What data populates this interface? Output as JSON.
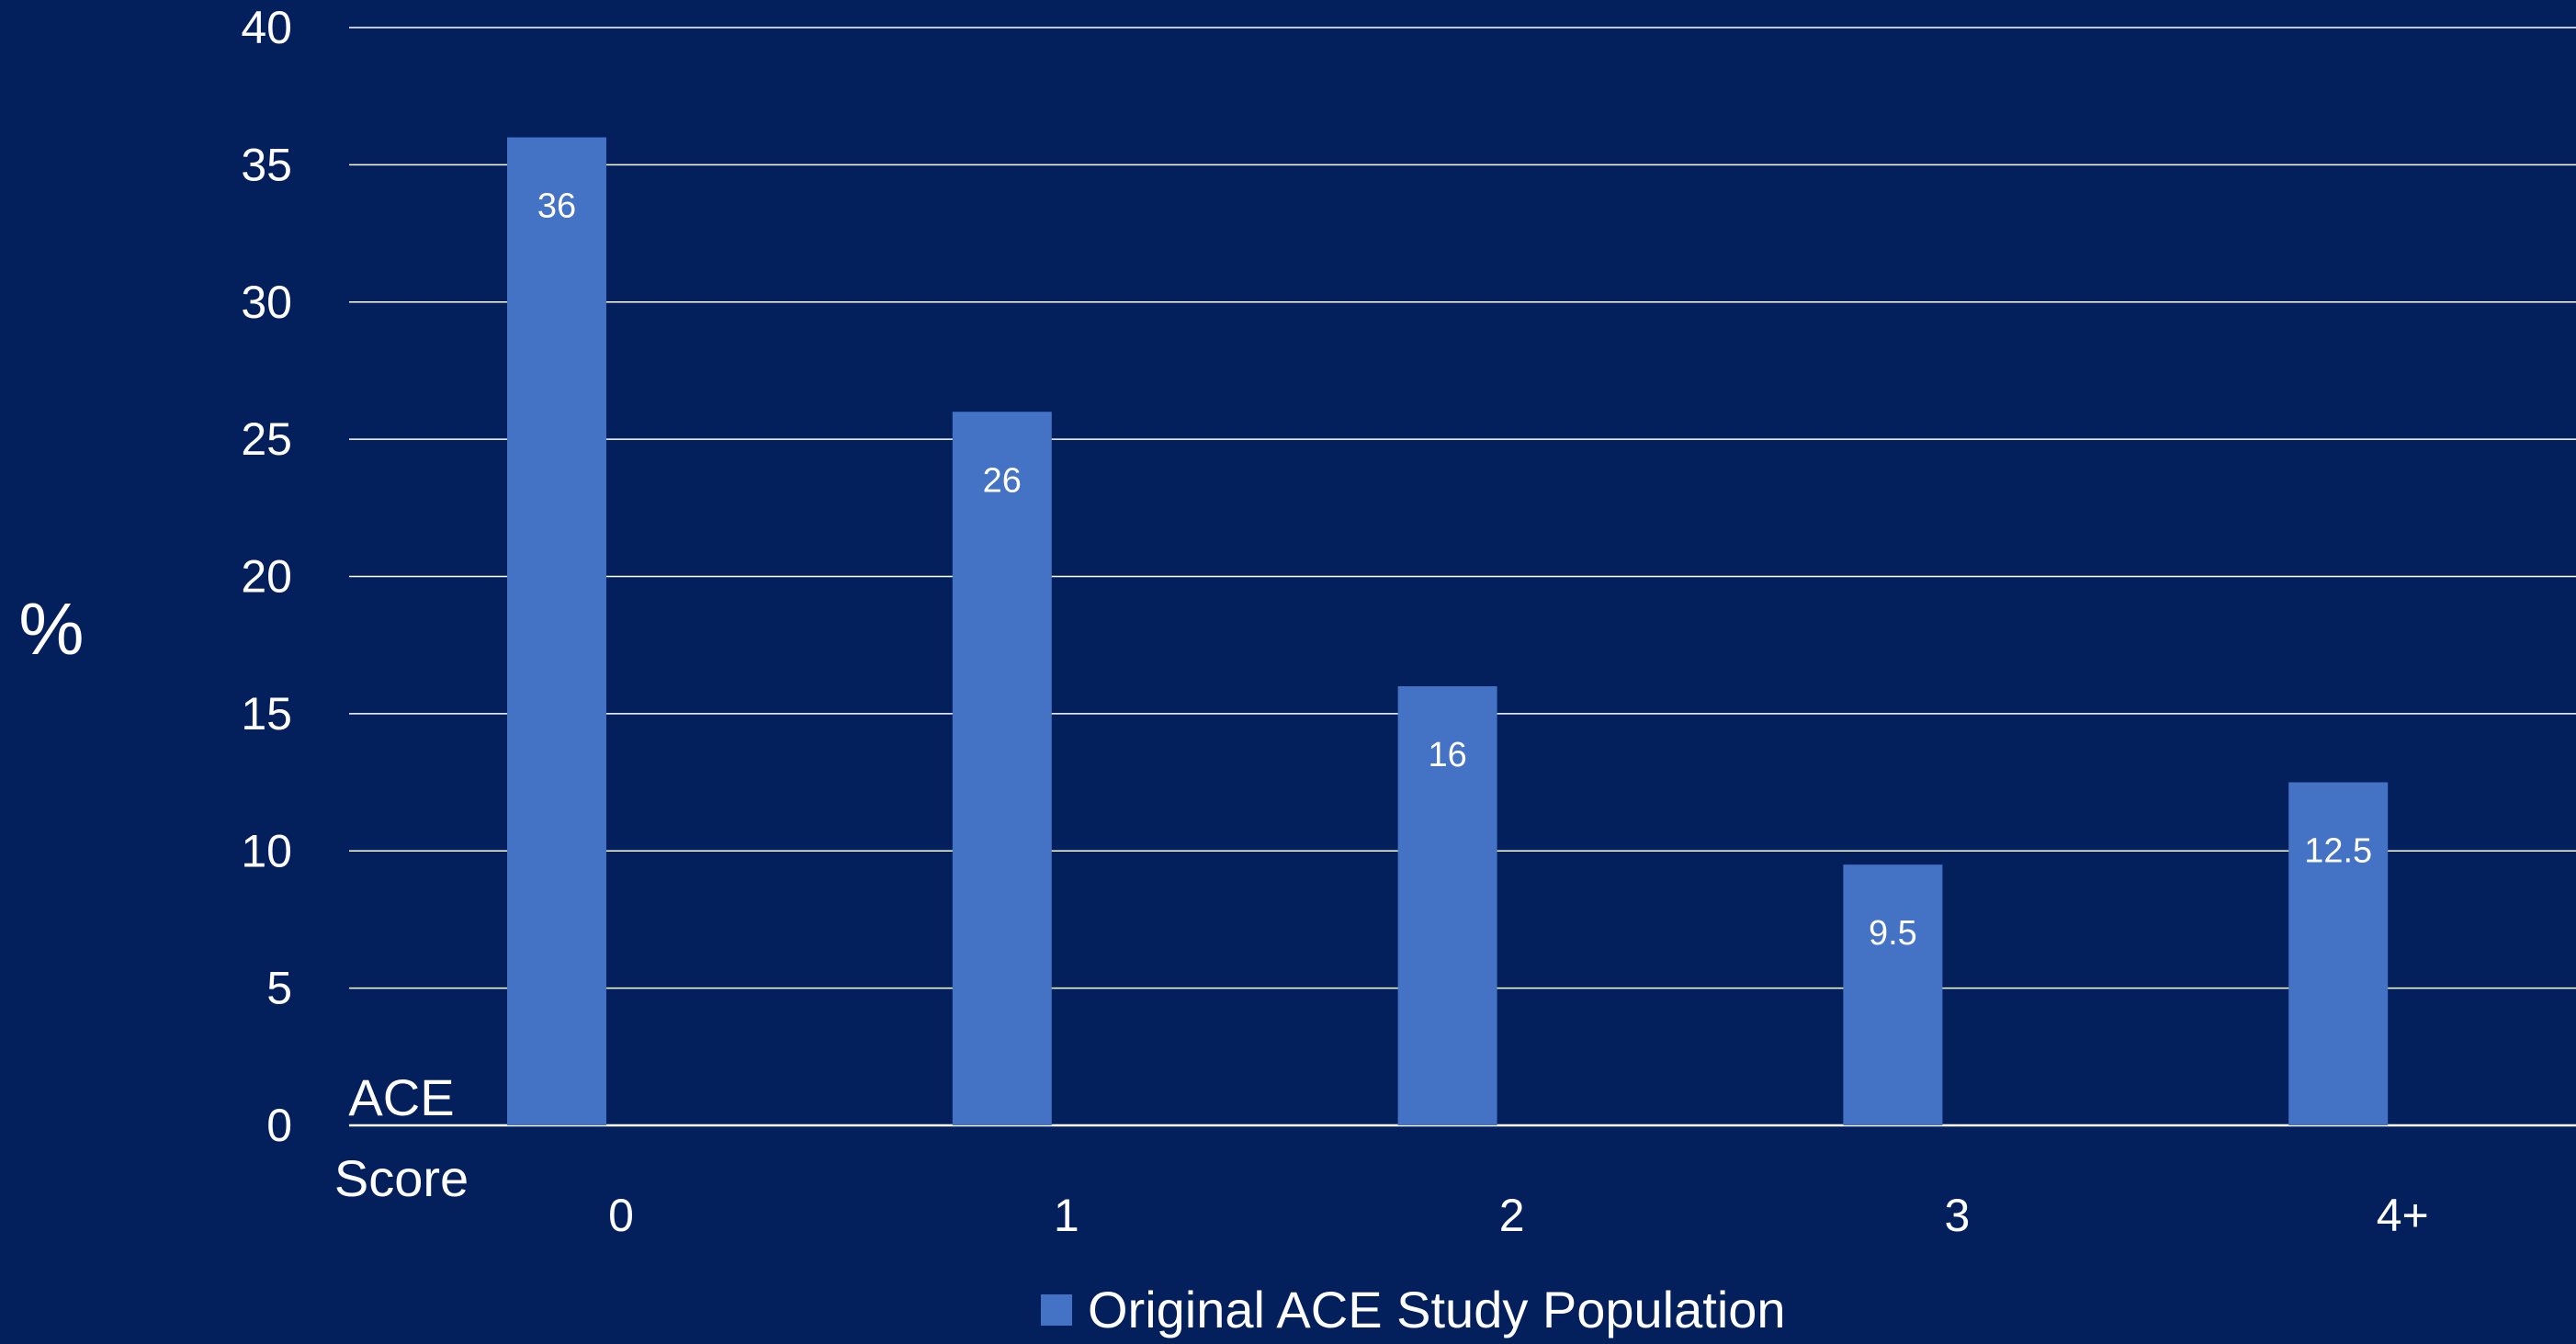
{
  "chart_data": {
    "type": "bar",
    "categories": [
      "0",
      "1",
      "2",
      "3",
      "4+"
    ],
    "series": [
      {
        "name": "Original ACE Study Population",
        "values": [
          36,
          26,
          16,
          9.5,
          12.5
        ],
        "data_labels": [
          "36",
          "26",
          "16",
          "9.5",
          "12.5"
        ]
      }
    ],
    "title": "",
    "xlabel_line1": "ACE",
    "xlabel_line2": "Score",
    "ylabel": "%",
    "ylim": [
      0,
      40
    ],
    "yticks": [
      0,
      5,
      10,
      15,
      20,
      25,
      30,
      35,
      40
    ],
    "ytick_labels": [
      "0",
      "5",
      "10",
      "15",
      "20",
      "25",
      "30",
      "35",
      "40"
    ],
    "grid": "horizontal",
    "legend_position": "bottom-center",
    "colors": {
      "background": "#03205d",
      "bar": "#4472c4",
      "gridline": "#ffffff",
      "text": "#ffffff"
    }
  }
}
